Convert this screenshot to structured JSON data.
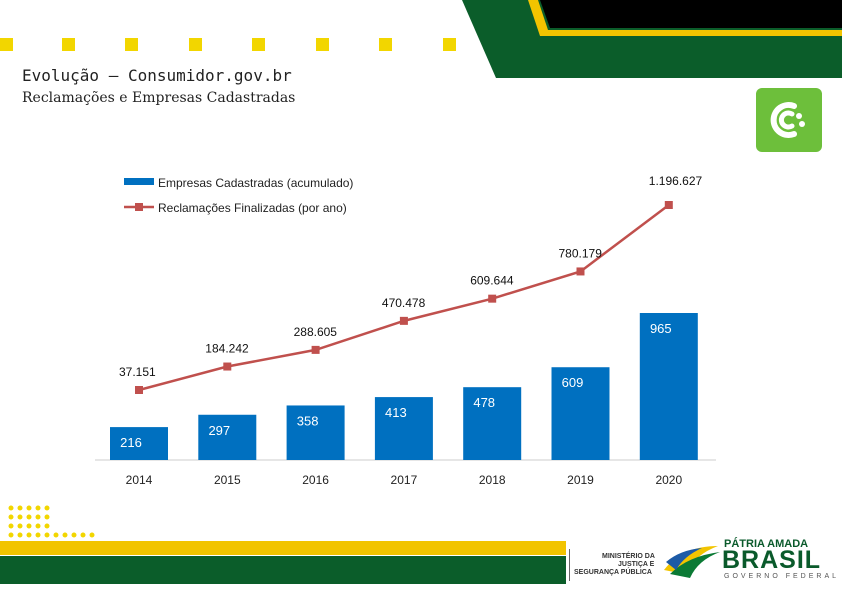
{
  "header": {
    "title": "Evolução – Consumidor.gov.br",
    "subtitle": "Reclamações e Empresas Cadastradas"
  },
  "colors": {
    "bars": "#0070c0",
    "line": "#c0504d",
    "accent_yellow": "#f2c400",
    "brand_green": "#0b5d2a",
    "app_green": "#6dbf3b"
  },
  "icons": [
    "consumidor-gov-logo-icon",
    "brazil-flag-icon"
  ],
  "chart_data": {
    "type": "bar",
    "categories": [
      "2014",
      "2015",
      "2016",
      "2017",
      "2018",
      "2019",
      "2020"
    ],
    "series": [
      {
        "name": "Empresas Cadastradas (acumulado)",
        "type": "bar",
        "values": [
          216,
          297,
          358,
          413,
          478,
          609,
          965
        ],
        "labels": [
          "216",
          "297",
          "358",
          "413",
          "478",
          "609",
          "965"
        ]
      },
      {
        "name": "Reclamações Finalizadas (por ano)",
        "type": "line",
        "values": [
          37151,
          184242,
          288605,
          470478,
          609644,
          780179,
          1196627
        ],
        "labels": [
          "37.151",
          "184.242",
          "288.605",
          "470.478",
          "609.644",
          "780.179",
          "1.196.627"
        ]
      }
    ],
    "legend_position": "top-left",
    "grid": false
  },
  "footer": {
    "ministry_lines": [
      "MINISTÉRIO DA",
      "JUSTIÇA E",
      "SEGURANÇA PÚBLICA"
    ],
    "brand_top": "PÁTRIA AMADA",
    "brand_main": "BRASIL",
    "brand_bottom": "GOVERNO FEDERAL"
  }
}
